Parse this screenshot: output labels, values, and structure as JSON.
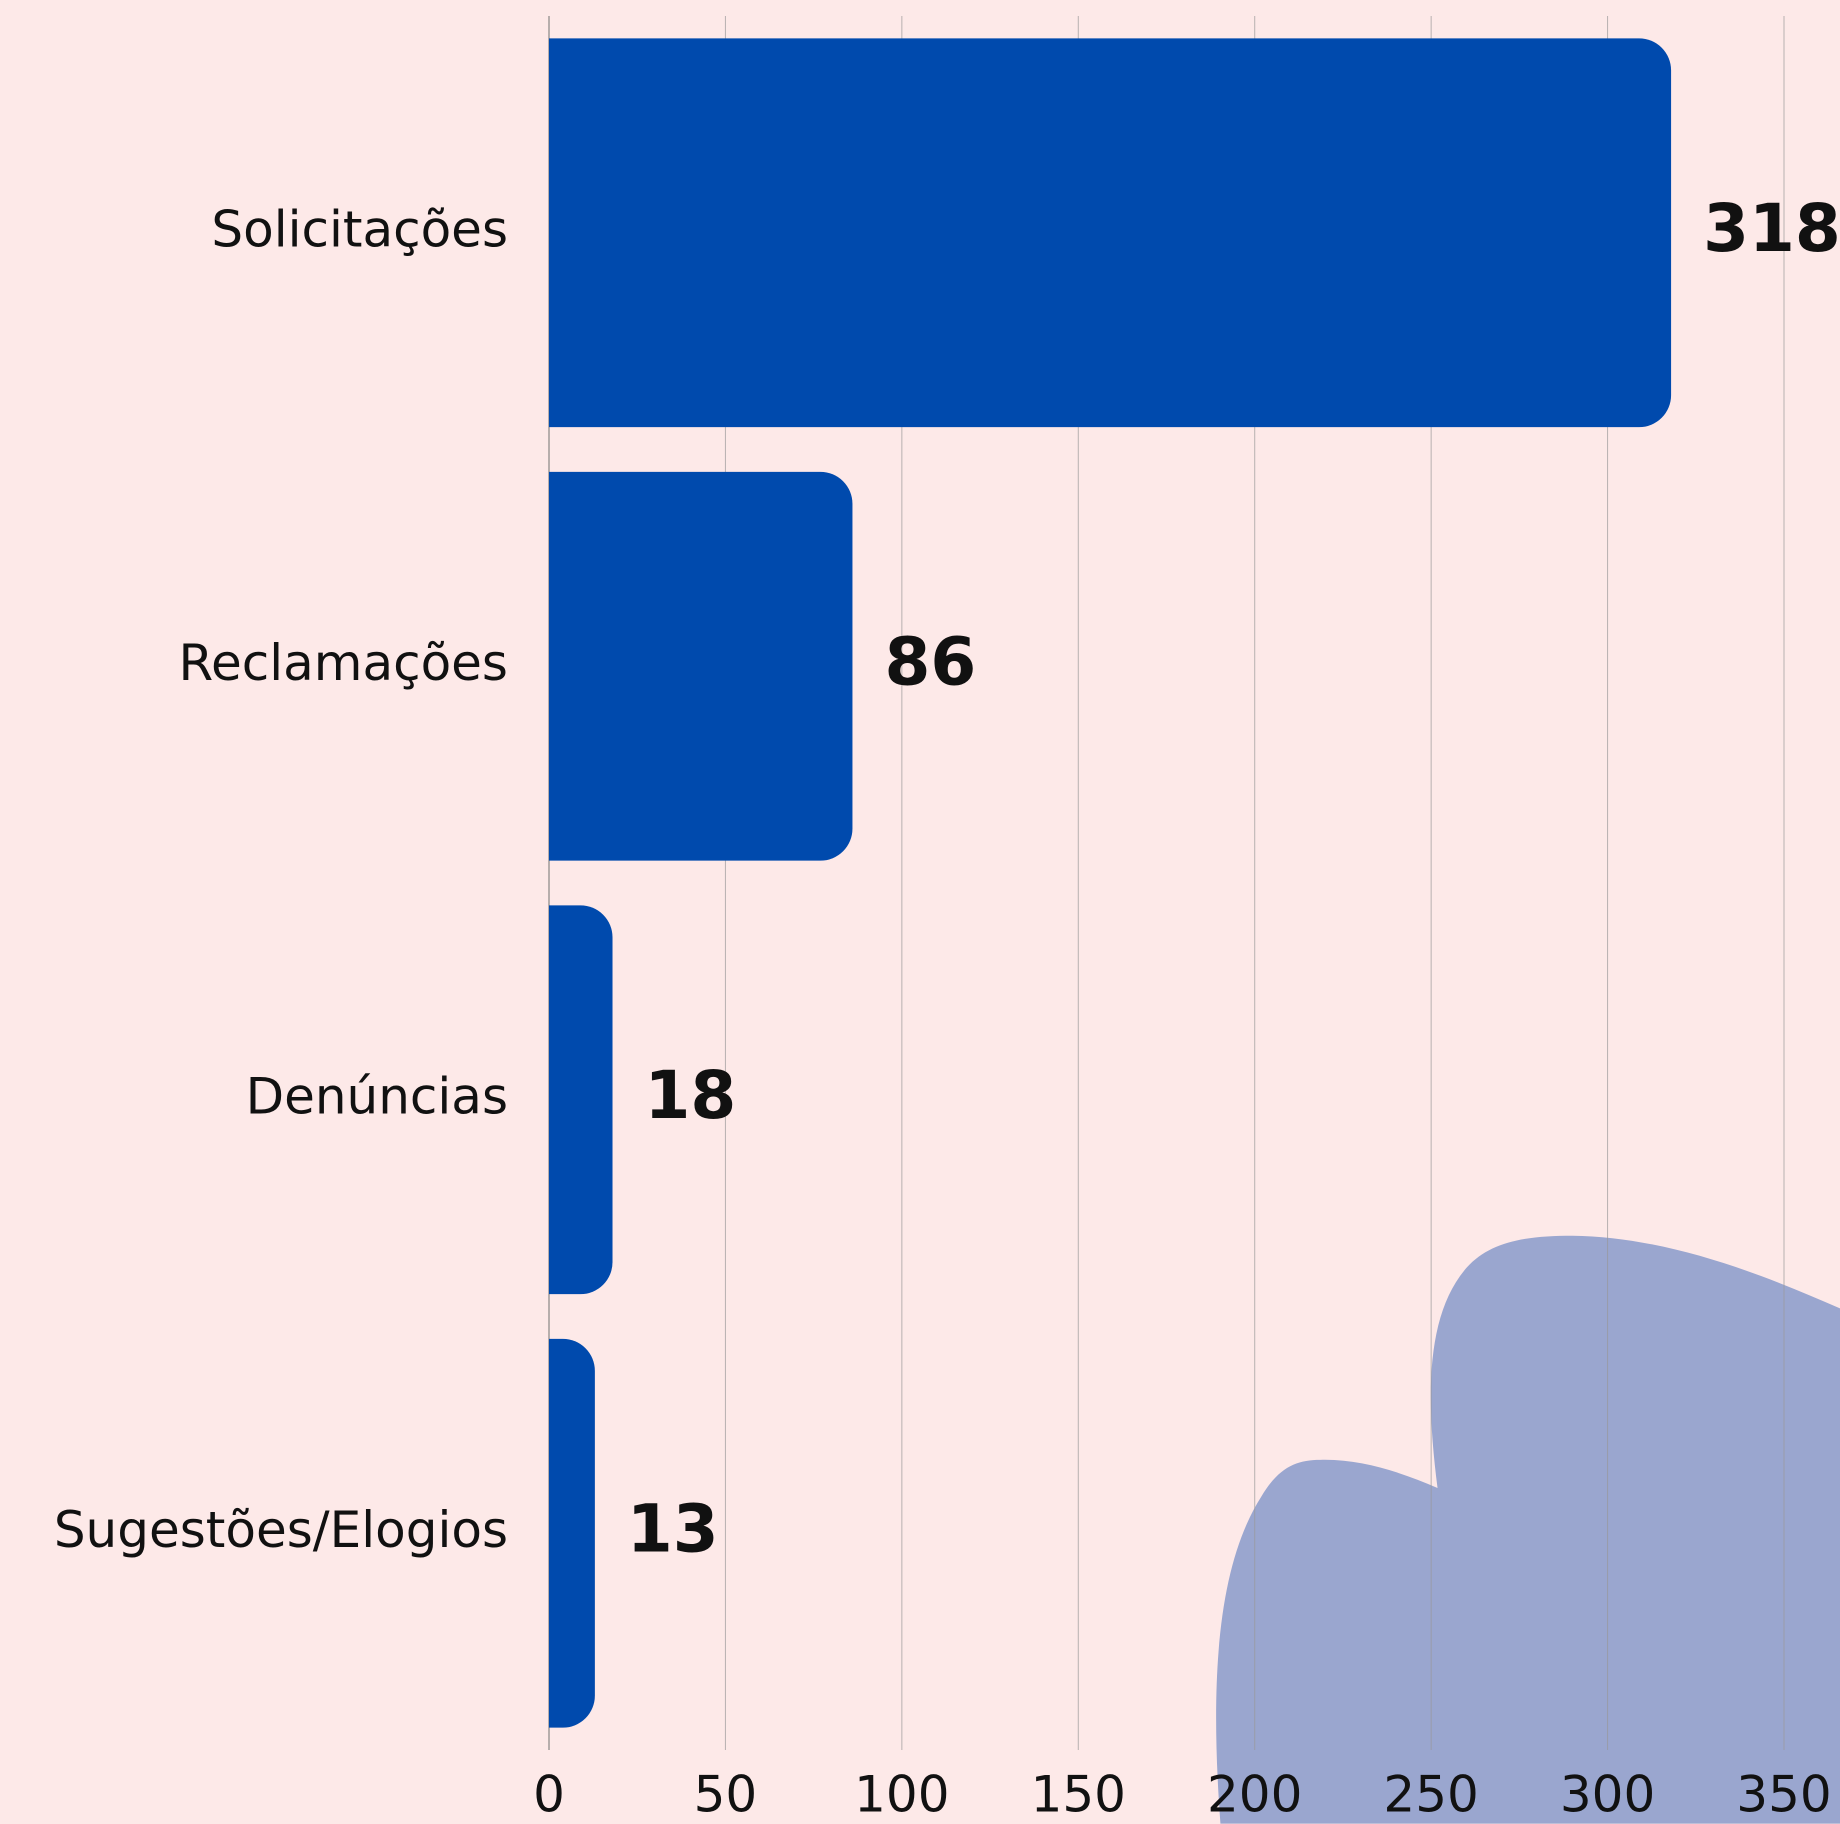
{
  "chart_data": {
    "type": "bar",
    "orientation": "horizontal",
    "categories": [
      "Solicitações",
      "Reclamações",
      "Denúncias",
      "Sugestões/Elogios"
    ],
    "values": [
      318,
      86,
      18,
      13
    ],
    "color": "#004aad",
    "xlim": [
      0,
      350
    ],
    "xticks": [
      0,
      50,
      100,
      150,
      200,
      250,
      300,
      350
    ],
    "grid": true
  }
}
